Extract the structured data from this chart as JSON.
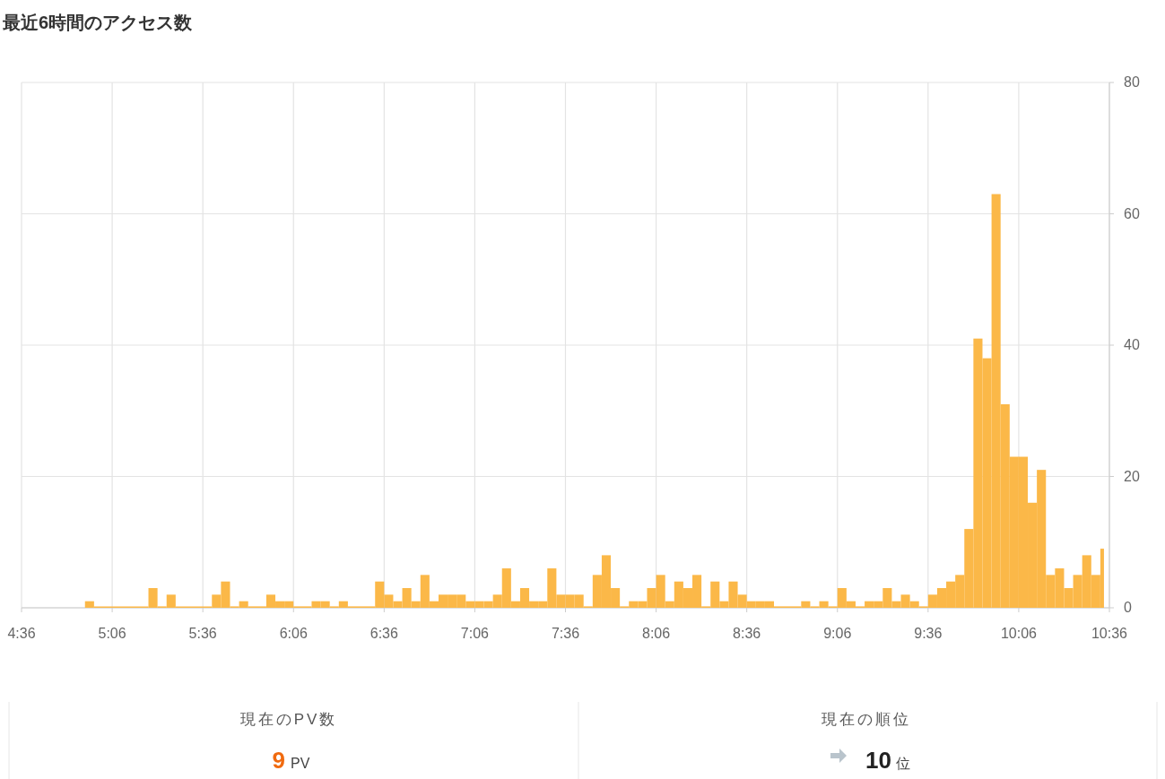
{
  "chart_data": [
    {
      "type": "histogram",
      "title": "最近6時間のアクセス数",
      "bins": [
        4.95,
        5.0,
        5.3,
        5.35,
        5.4,
        5.45,
        5.65,
        5.7,
        5.75,
        5.8,
        5.85,
        5.95,
        6.0,
        6.05,
        6.1,
        6.2,
        6.25,
        6.3,
        6.35,
        6.4,
        6.55,
        6.6,
        6.65,
        6.7,
        6.75,
        6.8,
        6.85,
        6.9,
        6.95,
        7.0,
        7.05,
        7.1,
        7.15,
        7.2,
        7.25,
        7.3,
        7.35,
        7.4,
        7.45,
        7.5,
        7.55,
        7.6,
        7.65,
        7.7,
        7.75,
        7.8,
        7.85,
        7.9,
        7.95,
        8.0,
        8.05,
        8.1,
        8.15,
        8.2,
        8.25,
        8.3,
        8.35,
        8.4,
        8.45,
        8.5,
        8.55,
        8.6,
        8.65,
        8.7,
        8.75,
        8.9,
        8.95,
        9.0,
        9.05,
        9.1,
        9.15,
        9.2,
        9.25,
        9.3,
        9.35,
        9.4,
        9.45,
        9.5,
        9.55,
        9.6,
        9.65,
        9.7,
        9.75,
        9.8,
        9.85,
        9.9,
        9.95,
        10.0,
        10.05,
        10.1,
        10.15,
        10.2,
        10.25,
        10.3,
        10.35,
        10.4,
        10.45,
        10.5,
        10.55,
        10.57
      ],
      "values": [
        1,
        0,
        3,
        0,
        2,
        0,
        2,
        4,
        0,
        1,
        0,
        2,
        1,
        1,
        0,
        1,
        1,
        0,
        1,
        0,
        4,
        2,
        1,
        3,
        1,
        5,
        1,
        2,
        2,
        2,
        1,
        1,
        1,
        2,
        6,
        1,
        3,
        1,
        1,
        6,
        2,
        2,
        2,
        0,
        5,
        8,
        3,
        0,
        1,
        1,
        3,
        5,
        1,
        4,
        3,
        5,
        0,
        4,
        1,
        4,
        2,
        1,
        1,
        1,
        0,
        1,
        0,
        1,
        0,
        3,
        1,
        0,
        1,
        1,
        3,
        1,
        2,
        1,
        0,
        2,
        3,
        4,
        5,
        12,
        41,
        38,
        63,
        31,
        23,
        23,
        16,
        21,
        5,
        6,
        3,
        5,
        8,
        5,
        9
      ],
      "color": "#fbb848",
      "xlim": [
        4.6,
        10.6
      ],
      "xticks": [
        {
          "value": 4.6,
          "label": "4:36"
        },
        {
          "value": 5.1,
          "label": "5:06"
        },
        {
          "value": 5.6,
          "label": "5:36"
        },
        {
          "value": 6.1,
          "label": "6:06"
        },
        {
          "value": 6.6,
          "label": "6:36"
        },
        {
          "value": 7.1,
          "label": "7:06"
        },
        {
          "value": 7.6,
          "label": "7:36"
        },
        {
          "value": 8.1,
          "label": "8:06"
        },
        {
          "value": 8.6,
          "label": "8:36"
        },
        {
          "value": 9.1,
          "label": "9:06"
        },
        {
          "value": 9.6,
          "label": "9:36"
        },
        {
          "value": 10.1,
          "label": "10:06"
        },
        {
          "value": 10.6,
          "label": "10:36"
        }
      ],
      "ylim": [
        0,
        80
      ],
      "yticks": [
        0,
        20,
        40,
        60,
        80
      ],
      "grid": true
    },
    {
      "type": "other",
      "annotations": [
        "現在のPV数",
        "9",
        "PV",
        "現在の順位",
        "10",
        "位"
      ]
    }
  ]
}
